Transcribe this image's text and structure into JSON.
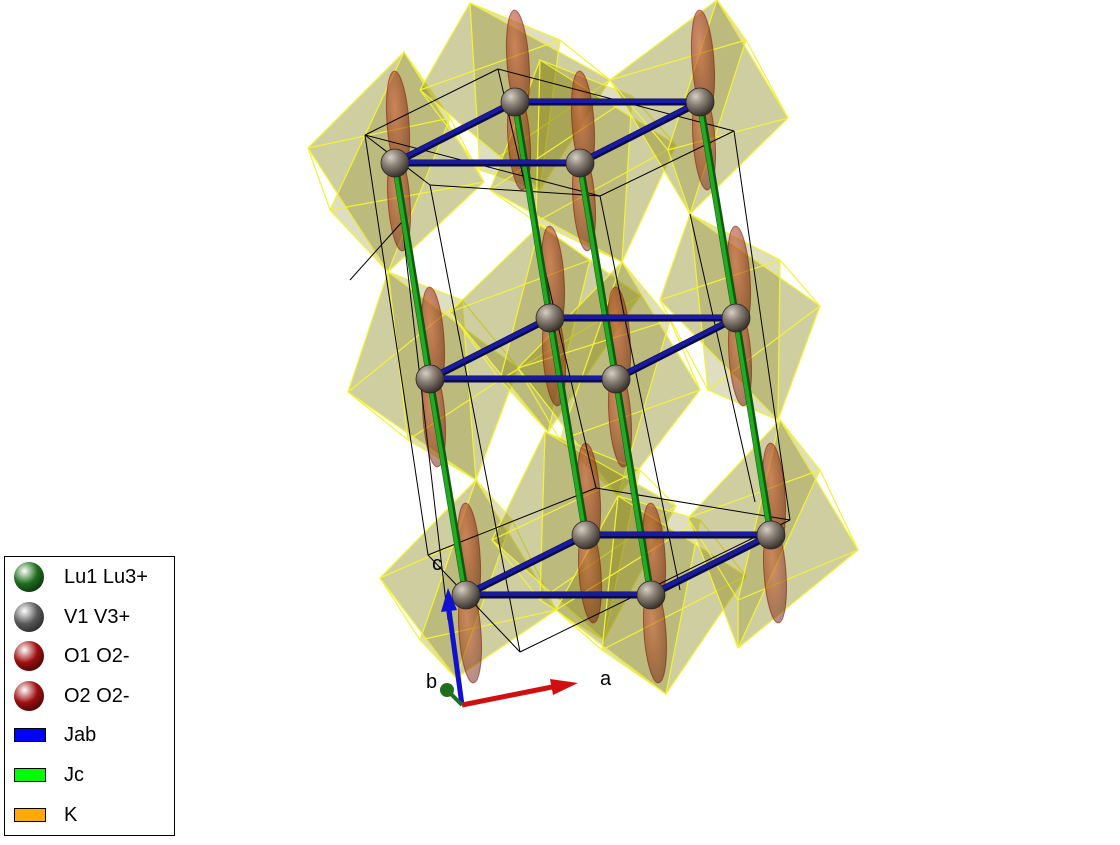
{
  "structure": {
    "bonds": {
      "jab_color": "#1a1aa0",
      "jc_color": "#22aa22"
    },
    "polyhedra": {
      "face_color": "#8c8a1e",
      "edge_color": "#f2f23a"
    },
    "cell_edge_color": "#000000"
  },
  "axes": {
    "a_label": "a",
    "b_label": "b",
    "c_label": "c",
    "a_color": "#d01010",
    "b_color": "#1e6e1e",
    "c_color": "#1010d0"
  },
  "legend": {
    "items": [
      {
        "label": "Lu1 Lu3+",
        "kind": "ball",
        "color": "#1e6e1e"
      },
      {
        "label": "V1 V3+",
        "kind": "ball",
        "color": "#5a5a5a"
      },
      {
        "label": "O1 O2-",
        "kind": "ball",
        "color": "#9e0f0f"
      },
      {
        "label": "O2 O2-",
        "kind": "ball",
        "color": "#9e0f0f"
      },
      {
        "label": "Jab",
        "kind": "swatch",
        "color": "#0000ff"
      },
      {
        "label": "Jc",
        "kind": "swatch",
        "color": "#00ff00"
      },
      {
        "label": "K",
        "kind": "swatch",
        "color": "#ffaa00"
      }
    ]
  }
}
